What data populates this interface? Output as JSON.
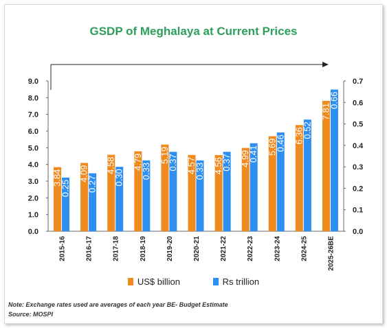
{
  "chart_data": {
    "type": "bar",
    "title": "GSDP of Meghalaya at Current Prices",
    "categories": [
      "2015-16",
      "2016-17",
      "2017-18",
      "2018-19",
      "2019-20",
      "2020-21",
      "2021-22",
      "2022-23",
      "2023-24",
      "2024-25",
      "2025-26BE"
    ],
    "series": [
      {
        "name": "US$ billion",
        "axis": "left",
        "color": "#ef8a1f",
        "values": [
          3.84,
          4.09,
          4.58,
          4.79,
          5.19,
          4.57,
          4.56,
          4.99,
          5.69,
          6.36,
          7.81
        ],
        "labels": [
          "3.84",
          "4.09",
          "4.58",
          "4.79",
          "5.19",
          "4.57",
          "4.56",
          "4.99",
          "5.69",
          "6.36",
          "7.81"
        ]
      },
      {
        "name": "Rs trillion",
        "axis": "right",
        "color": "#2e8ff0",
        "values": [
          0.25,
          0.27,
          0.3,
          0.33,
          0.37,
          0.33,
          0.37,
          0.41,
          0.46,
          0.52,
          0.66
        ],
        "labels": [
          "0.25",
          "0.27",
          "0.30",
          "0.33",
          "0.37",
          "0.33",
          "0.37",
          "0.41",
          "0.46",
          "0.52",
          "0.66"
        ]
      }
    ],
    "y_left": {
      "min": 0,
      "max": 9,
      "ticks": [
        "0.0",
        "1.0",
        "2.0",
        "3.0",
        "4.0",
        "5.0",
        "6.0",
        "7.0",
        "8.0",
        "9.0"
      ]
    },
    "y_right": {
      "min": 0,
      "max": 0.7,
      "ticks": [
        "0.0",
        "0.1",
        "0.2",
        "0.3",
        "0.4",
        "0.5",
        "0.6",
        "0.7"
      ]
    },
    "legend_position": "bottom",
    "grid": false,
    "annotation": "trend arrow"
  },
  "note": "Note: Exchange rates used are averages of each year BE- Budget Estimate",
  "source": "Source: MOSPI"
}
